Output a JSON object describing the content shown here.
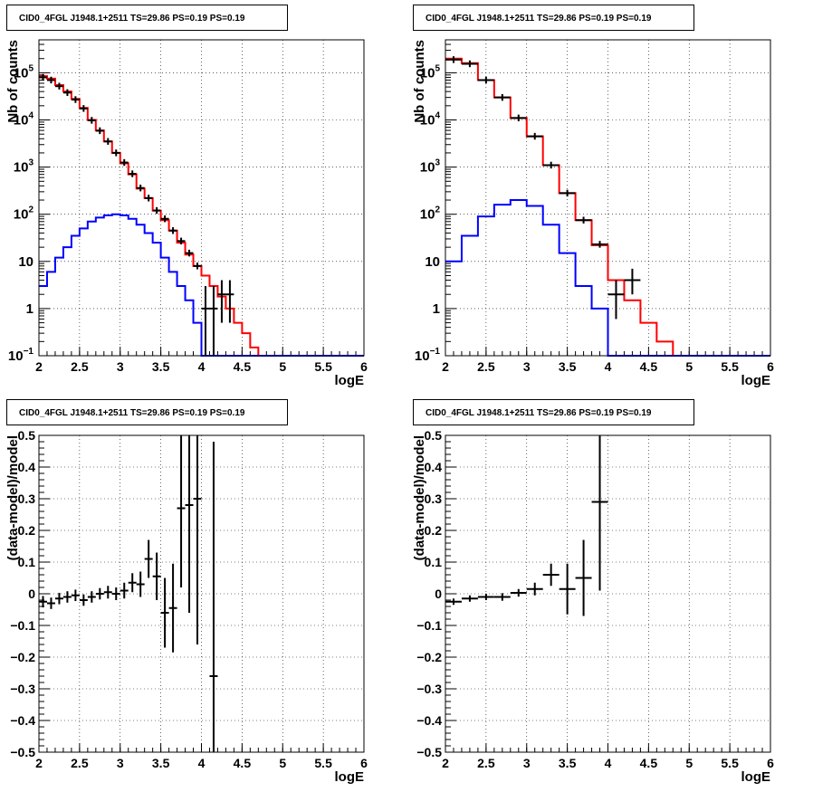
{
  "chart_data": [
    {
      "type": "histogram",
      "title": "CID0_4FGL J1948.1+2511 TS=29.86 PS=0.19 PS=0.19",
      "xlabel": "logE",
      "ylabel": "Nb of counts",
      "xlim": [
        2,
        6
      ],
      "ylim": [
        0.1,
        500000
      ],
      "yscale": "log",
      "grid": true,
      "xticks": [
        "2",
        "2.5",
        "3",
        "3.5",
        "4",
        "4.5",
        "5",
        "5.5",
        "6"
      ],
      "yticks": [
        "10⁻¹",
        "1",
        "10",
        "10²",
        "10³",
        "10⁴",
        "10⁵"
      ],
      "bin_edges": [
        2,
        2.1,
        2.2,
        2.3,
        2.4,
        2.5,
        2.6,
        2.7,
        2.8,
        2.9,
        3,
        3.1,
        3.2,
        3.3,
        3.4,
        3.5,
        3.6,
        3.7,
        3.8,
        3.9,
        4,
        4.1,
        4.2,
        4.3,
        4.4,
        4.5,
        4.6,
        4.7,
        4.8,
        4.9,
        5,
        5.1,
        5.2,
        5.3,
        5.4,
        5.5,
        5.6,
        5.7,
        5.8,
        5.9,
        6
      ],
      "series": [
        {
          "color": "#ff0000",
          "values": [
            85000,
            75000,
            55000,
            40000,
            28000,
            18000,
            10000,
            6000,
            3500,
            2000,
            1200,
            700,
            350,
            220,
            120,
            75,
            45,
            25,
            14,
            8,
            5,
            3,
            1.8,
            1,
            0.5,
            0.3,
            0.15,
            0.1,
            0.1,
            0.1,
            0.1,
            0.1,
            0.1,
            0.1,
            0.1,
            0.1,
            0.1,
            0.1,
            0.1,
            0.1
          ]
        },
        {
          "color": "#0000ff",
          "values": [
            3,
            6,
            12,
            20,
            35,
            50,
            70,
            85,
            95,
            100,
            95,
            80,
            60,
            40,
            25,
            12,
            6,
            3,
            1.5,
            0.5,
            0.1,
            0.1,
            0.1,
            0.1,
            0.1,
            0.1,
            0.1,
            0.1,
            0.1,
            0.1,
            0.1,
            0.1,
            0.1,
            0.1,
            0.1,
            0.1,
            0.1,
            0.1,
            0.1,
            0.1
          ]
        }
      ],
      "data_points": [
        {
          "x": 2.05,
          "y": 80000
        },
        {
          "x": 2.15,
          "y": 70000
        },
        {
          "x": 2.25,
          "y": 52000
        },
        {
          "x": 2.35,
          "y": 38000
        },
        {
          "x": 2.45,
          "y": 27000
        },
        {
          "x": 2.55,
          "y": 17500
        },
        {
          "x": 2.65,
          "y": 9800
        },
        {
          "x": 2.75,
          "y": 5900
        },
        {
          "x": 2.85,
          "y": 3500
        },
        {
          "x": 2.95,
          "y": 2000
        },
        {
          "x": 3.05,
          "y": 1250
        },
        {
          "x": 3.15,
          "y": 720
        },
        {
          "x": 3.25,
          "y": 360
        },
        {
          "x": 3.35,
          "y": 220
        },
        {
          "x": 3.45,
          "y": 120
        },
        {
          "x": 3.55,
          "y": 80
        },
        {
          "x": 3.65,
          "y": 45
        },
        {
          "x": 3.75,
          "y": 27
        },
        {
          "x": 3.85,
          "y": 15
        },
        {
          "x": 3.95,
          "y": 8
        },
        {
          "x": 4.05,
          "y": 1,
          "ylo": 0.1,
          "yhi": 3
        },
        {
          "x": 4.15,
          "y": 1,
          "ylo": 0.1,
          "yhi": 3
        },
        {
          "x": 4.25,
          "y": 2,
          "ylo": 0.5,
          "yhi": 4
        },
        {
          "x": 4.35,
          "y": 2,
          "ylo": 0.5,
          "yhi": 4
        }
      ]
    },
    {
      "type": "histogram",
      "title": "CID0_4FGL J1948.1+2511 TS=29.86 PS=0.19 PS=0.19",
      "xlabel": "logE",
      "ylabel": "Nb of counts",
      "xlim": [
        2,
        6
      ],
      "ylim": [
        0.1,
        500000
      ],
      "yscale": "log",
      "grid": true,
      "xticks": [
        "2",
        "2.5",
        "3",
        "3.5",
        "4",
        "4.5",
        "5",
        "5.5",
        "6"
      ],
      "yticks": [
        "10⁻¹",
        "1",
        "10",
        "10²",
        "10³",
        "10⁴",
        "10⁵"
      ],
      "bin_edges": [
        2,
        2.2,
        2.4,
        2.6,
        2.8,
        3,
        3.2,
        3.4,
        3.6,
        3.8,
        4,
        4.2,
        4.4,
        4.6,
        4.8,
        5,
        5.2,
        5.4,
        5.6,
        5.8,
        6
      ],
      "series": [
        {
          "color": "#ff0000",
          "values": [
            200000,
            160000,
            70000,
            30000,
            11000,
            4500,
            1100,
            280,
            75,
            22,
            4,
            1.5,
            0.5,
            0.2,
            0.1,
            0.1,
            0.1,
            0.1,
            0.1,
            0.1
          ]
        },
        {
          "color": "#0000ff",
          "values": [
            10,
            35,
            90,
            160,
            200,
            150,
            60,
            15,
            3,
            1,
            0.1,
            0.1,
            0.1,
            0.1,
            0.1,
            0.1,
            0.1,
            0.1,
            0.1,
            0.1
          ]
        }
      ],
      "data_points": [
        {
          "x": 2.1,
          "y": 190000
        },
        {
          "x": 2.3,
          "y": 155000
        },
        {
          "x": 2.5,
          "y": 70000
        },
        {
          "x": 2.7,
          "y": 30000
        },
        {
          "x": 2.9,
          "y": 11000
        },
        {
          "x": 3.1,
          "y": 4500
        },
        {
          "x": 3.3,
          "y": 1100
        },
        {
          "x": 3.5,
          "y": 280
        },
        {
          "x": 3.7,
          "y": 75
        },
        {
          "x": 3.9,
          "y": 23
        },
        {
          "x": 4.1,
          "y": 2,
          "ylo": 0.6,
          "yhi": 4
        },
        {
          "x": 4.3,
          "y": 4,
          "ylo": 2,
          "yhi": 7
        }
      ]
    },
    {
      "type": "scatter",
      "title": "CID0_4FGL J1948.1+2511 TS=29.86 PS=0.19 PS=0.19",
      "xlabel": "logE",
      "ylabel": "(data-model)/model",
      "xlim": [
        2,
        6
      ],
      "ylim": [
        -0.5,
        0.5
      ],
      "grid": true,
      "xticks": [
        "2",
        "2.5",
        "3",
        "3.5",
        "4",
        "4.5",
        "5",
        "5.5",
        "6"
      ],
      "yticks": [
        "−0.5",
        "−0.4",
        "−0.3",
        "−0.2",
        "−0.1",
        "0",
        "0.1",
        "0.2",
        "0.3",
        "0.4",
        "0.5"
      ],
      "xerr": 0.05,
      "points": [
        {
          "x": 2.05,
          "y": -0.025,
          "err": 0.018
        },
        {
          "x": 2.15,
          "y": -0.03,
          "err": 0.018
        },
        {
          "x": 2.25,
          "y": -0.015,
          "err": 0.018
        },
        {
          "x": 2.35,
          "y": -0.01,
          "err": 0.018
        },
        {
          "x": 2.45,
          "y": -0.005,
          "err": 0.018
        },
        {
          "x": 2.55,
          "y": -0.02,
          "err": 0.018
        },
        {
          "x": 2.65,
          "y": -0.01,
          "err": 0.018
        },
        {
          "x": 2.75,
          "y": 0.0,
          "err": 0.018
        },
        {
          "x": 2.85,
          "y": 0.005,
          "err": 0.02
        },
        {
          "x": 2.95,
          "y": 0.0,
          "err": 0.02
        },
        {
          "x": 3.05,
          "y": 0.01,
          "err": 0.025
        },
        {
          "x": 3.15,
          "y": 0.035,
          "err": 0.03
        },
        {
          "x": 3.25,
          "y": 0.03,
          "err": 0.04
        },
        {
          "x": 3.35,
          "y": 0.11,
          "err": 0.06
        },
        {
          "x": 3.45,
          "y": 0.055,
          "err": 0.075
        },
        {
          "x": 3.55,
          "y": -0.06,
          "err": 0.11
        },
        {
          "x": 3.65,
          "y": -0.045,
          "err": 0.14
        },
        {
          "x": 3.75,
          "y": 0.27,
          "err": 0.25
        },
        {
          "x": 3.85,
          "y": 0.28,
          "err": 0.34
        },
        {
          "x": 3.95,
          "y": 0.3,
          "err": 0.46
        },
        {
          "x": 4.15,
          "y": -0.26,
          "err": 0.74
        }
      ]
    },
    {
      "type": "scatter",
      "title": "CID0_4FGL J1948.1+2511 TS=29.86 PS=0.19 PS=0.19",
      "xlabel": "logE",
      "ylabel": "(data-model)/model",
      "xlim": [
        2,
        6
      ],
      "ylim": [
        -0.5,
        0.5
      ],
      "grid": true,
      "xticks": [
        "2",
        "2.5",
        "3",
        "3.5",
        "4",
        "4.5",
        "5",
        "5.5",
        "6"
      ],
      "yticks": [
        "−0.5",
        "−0.4",
        "−0.3",
        "−0.2",
        "−0.1",
        "0",
        "0.1",
        "0.2",
        "0.3",
        "0.4",
        "0.5"
      ],
      "xerr": 0.1,
      "points": [
        {
          "x": 2.1,
          "y": -0.025,
          "err": 0.01
        },
        {
          "x": 2.3,
          "y": -0.015,
          "err": 0.01
        },
        {
          "x": 2.5,
          "y": -0.01,
          "err": 0.01
        },
        {
          "x": 2.7,
          "y": -0.01,
          "err": 0.012
        },
        {
          "x": 2.9,
          "y": 0.003,
          "err": 0.012
        },
        {
          "x": 3.1,
          "y": 0.015,
          "err": 0.02
        },
        {
          "x": 3.3,
          "y": 0.06,
          "err": 0.035
        },
        {
          "x": 3.5,
          "y": 0.015,
          "err": 0.08
        },
        {
          "x": 3.7,
          "y": 0.05,
          "err": 0.12
        },
        {
          "x": 3.9,
          "y": 0.29,
          "err": 0.28
        }
      ]
    }
  ]
}
